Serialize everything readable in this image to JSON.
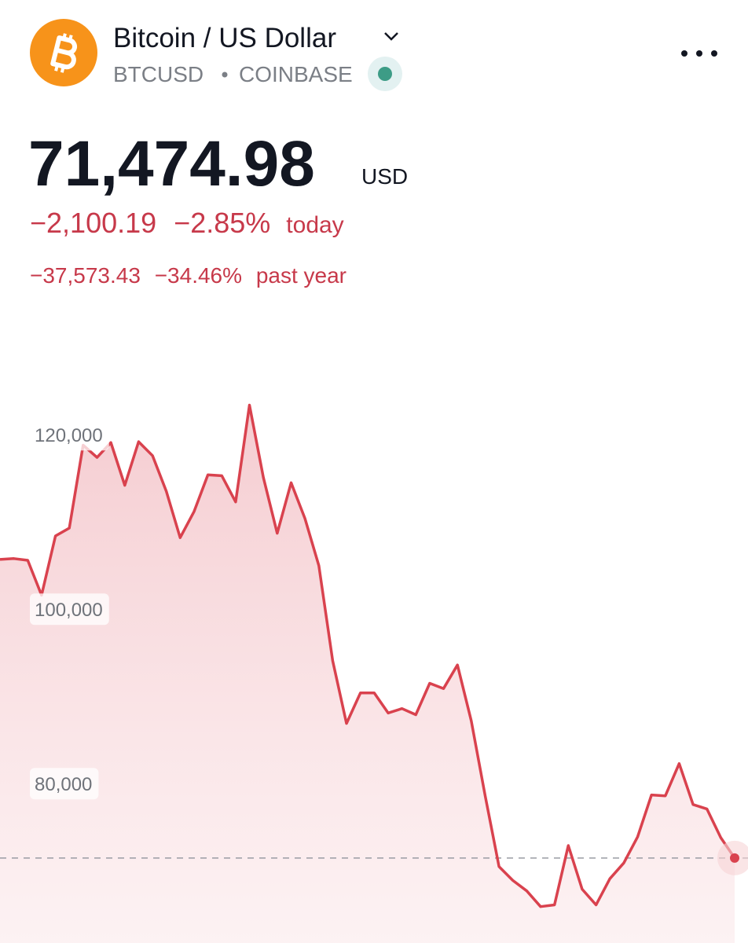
{
  "header": {
    "title": "Bitcoin / US Dollar",
    "symbol": "BTCUSD",
    "exchange": "COINBASE"
  },
  "price": {
    "value": "71,474.98",
    "currency": "USD"
  },
  "change_today": {
    "amount": "−2,100.19",
    "percent": "−2.85%",
    "label": "today"
  },
  "change_year": {
    "amount": "−37,573.43",
    "percent": "−34.46%",
    "label": "past year"
  },
  "chart_data": {
    "type": "line",
    "color": "#d9424e",
    "values": [
      105700,
      105800,
      105600,
      101600,
      108400,
      109300,
      118800,
      117400,
      119100,
      114200,
      119200,
      117600,
      113500,
      108200,
      111200,
      115400,
      115300,
      112300,
      123400,
      115100,
      108700,
      114500,
      110400,
      105000,
      94100,
      86900,
      90400,
      90400,
      88100,
      88600,
      87900,
      91500,
      90900,
      93600,
      87200,
      78600,
      70500,
      68900,
      67700,
      65900,
      66100,
      72900,
      67900,
      66100,
      69100,
      70900,
      73900,
      78700,
      78600,
      82300,
      77600,
      77100,
      73800,
      71474.98
    ],
    "ylim": [
      62000,
      132000
    ],
    "yticks": [
      {
        "value": 80000,
        "label": "80,000"
      },
      {
        "value": 100000,
        "label": "100,000"
      },
      {
        "value": 120000,
        "label": "120,000"
      }
    ]
  }
}
